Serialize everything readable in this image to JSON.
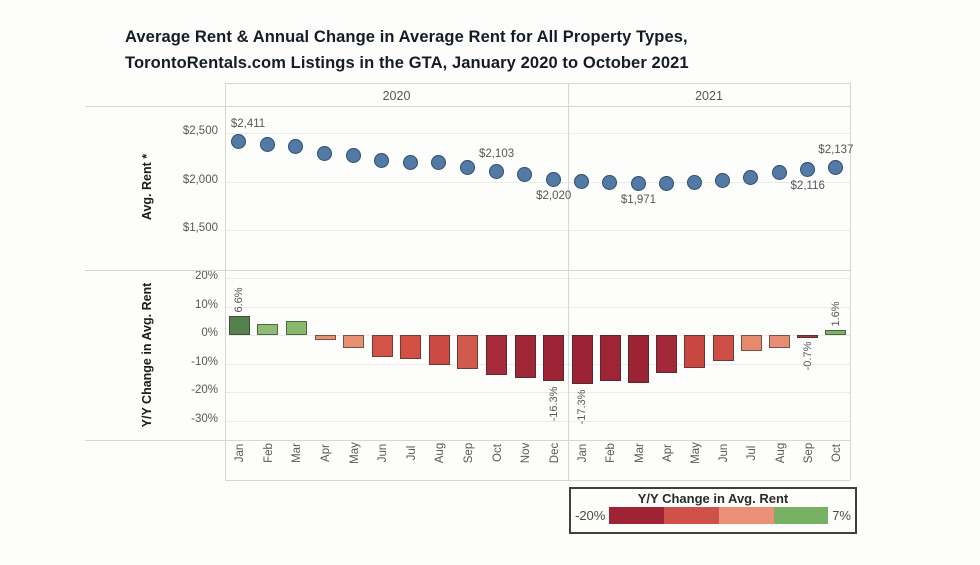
{
  "title": {
    "line1": "Average Rent & Annual Change in Average Rent for All Property Types,",
    "line2": "TorontoRentals.com Listings in the GTA, January 2020 to October 2021"
  },
  "panels": {
    "rent_row_label": "Avg. Rent *",
    "yoy_row_label": "Y/Y Change in Avg. Rent"
  },
  "year_headers": [
    "2020",
    "2021"
  ],
  "chart_data": [
    {
      "type": "scatter",
      "title": "Avg. Rent",
      "ylabel": "Avg. Rent *",
      "yticks": [
        2500,
        2000,
        1500
      ],
      "ytick_labels": [
        "$2,500",
        "$2,000",
        "$1,500"
      ],
      "grid": true,
      "point_color": "#527aa5",
      "point_border_color": "#2e4d6e",
      "groups": [
        {
          "year": "2020",
          "months": [
            "Jan",
            "Feb",
            "Mar",
            "Apr",
            "May",
            "Jun",
            "Jul",
            "Aug",
            "Sep",
            "Oct",
            "Nov",
            "Dec"
          ],
          "values": [
            2411,
            2372,
            2360,
            2282,
            2258,
            2212,
            2188,
            2186,
            2138,
            2103,
            2062,
            2020
          ]
        },
        {
          "year": "2021",
          "months": [
            "Jan",
            "Feb",
            "Mar",
            "Apr",
            "May",
            "Jun",
            "Jul",
            "Aug",
            "Sep",
            "Oct"
          ],
          "values": [
            1992,
            1982,
            1971,
            1976,
            1986,
            2006,
            2034,
            2088,
            2116,
            2137
          ]
        }
      ],
      "point_labels": [
        {
          "year": "2020",
          "month": "Jan",
          "text": "$2,411",
          "position": "above"
        },
        {
          "year": "2020",
          "month": "Oct",
          "text": "$2,103",
          "position": "above"
        },
        {
          "year": "2020",
          "month": "Dec",
          "text": "$2,020",
          "position": "below"
        },
        {
          "year": "2021",
          "month": "Mar",
          "text": "$1,971",
          "position": "below"
        },
        {
          "year": "2021",
          "month": "Sep",
          "text": "$2,116",
          "position": "below"
        },
        {
          "year": "2021",
          "month": "Oct",
          "text": "$2,137",
          "position": "above"
        }
      ]
    },
    {
      "type": "bar",
      "title": "Y/Y Change in Avg. Rent",
      "ylabel": "Y/Y Change in Avg. Rent",
      "yticks": [
        20,
        10,
        0,
        -10,
        -20,
        -30
      ],
      "ytick_labels": [
        "20%",
        "10%",
        "0%",
        "-10%",
        "-20%",
        "-30%"
      ],
      "grid": true,
      "groups": [
        {
          "year": "2020",
          "months": [
            "Jan",
            "Feb",
            "Mar",
            "Apr",
            "May",
            "Jun",
            "Jul",
            "Aug",
            "Sep",
            "Oct",
            "Nov",
            "Dec"
          ],
          "values": [
            6.6,
            3.8,
            4.8,
            -1.6,
            -4.5,
            -7.6,
            -8.3,
            -10.6,
            -11.9,
            -14.0,
            -15.1,
            -16.3
          ],
          "bar_colors": [
            "#55814f",
            "#8dbd72",
            "#86b96c",
            "#e8906f",
            "#e98f72",
            "#d25347",
            "#d25044",
            "#cb4a42",
            "#d05b4c",
            "#a52a3a",
            "#a02737",
            "#9c2435"
          ]
        },
        {
          "year": "2021",
          "months": [
            "Jan",
            "Feb",
            "Mar",
            "Apr",
            "May",
            "Jun",
            "Jul",
            "Aug",
            "Sep",
            "Oct"
          ],
          "values": [
            -17.3,
            -16.1,
            -17.0,
            -13.5,
            -11.7,
            -9.2,
            -5.7,
            -4.5,
            -0.7,
            1.6
          ],
          "bar_colors": [
            "#9b2334",
            "#9d2536",
            "#9b2334",
            "#a32939",
            "#c94741",
            "#ce4f45",
            "#e58a6e",
            "#e78e72",
            "#a8363b",
            "#7ab368"
          ]
        }
      ],
      "bar_labels": [
        {
          "year": "2020",
          "month": "Jan",
          "text": "6.6%",
          "position": "above"
        },
        {
          "year": "2020",
          "month": "Dec",
          "text": "-16.3%",
          "position": "below"
        },
        {
          "year": "2021",
          "month": "Jan",
          "text": "-17.3%",
          "position": "below"
        },
        {
          "year": "2021",
          "month": "Sep",
          "text": "-0.7%",
          "position": "below"
        },
        {
          "year": "2021",
          "month": "Oct",
          "text": "1.6%",
          "position": "above"
        }
      ]
    }
  ],
  "legend": {
    "title": "Y/Y Change in Avg. Rent",
    "min_label": "-20%",
    "max_label": "7%",
    "segment_colors": [
      "#9d2335",
      "#d0504a",
      "#ec9179",
      "#77b264"
    ]
  }
}
